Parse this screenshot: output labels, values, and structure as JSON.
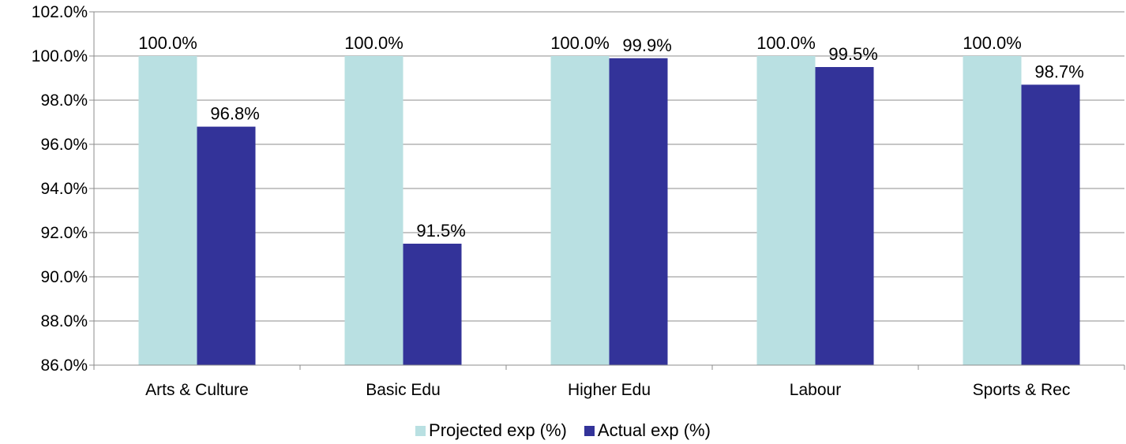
{
  "chart_data": {
    "type": "bar",
    "categories": [
      "Arts & Culture",
      "Basic Edu",
      "Higher Edu",
      "Labour",
      "Sports & Rec"
    ],
    "series": [
      {
        "name": "Projected exp (%)",
        "color": "#b9e0e2",
        "values": [
          100.0,
          100.0,
          100.0,
          100.0,
          100.0
        ],
        "labels": [
          "100.0%",
          "100.0%",
          "100.0%",
          "100.0%",
          "100.0%"
        ]
      },
      {
        "name": "Actual exp (%)",
        "color": "#333399",
        "values": [
          96.8,
          91.5,
          99.9,
          99.5,
          98.7
        ],
        "labels": [
          "96.8%",
          "91.5%",
          "99.9%",
          "99.5%",
          "98.7%"
        ]
      }
    ],
    "ylim": [
      86.0,
      102.0
    ],
    "yticks": [
      86.0,
      88.0,
      90.0,
      92.0,
      94.0,
      96.0,
      98.0,
      100.0,
      102.0
    ],
    "ytick_labels": [
      "86.0%",
      "88.0%",
      "90.0%",
      "92.0%",
      "94.0%",
      "96.0%",
      "98.0%",
      "100.0%",
      "102.0%"
    ],
    "grid": true,
    "legend_position": "bottom"
  }
}
